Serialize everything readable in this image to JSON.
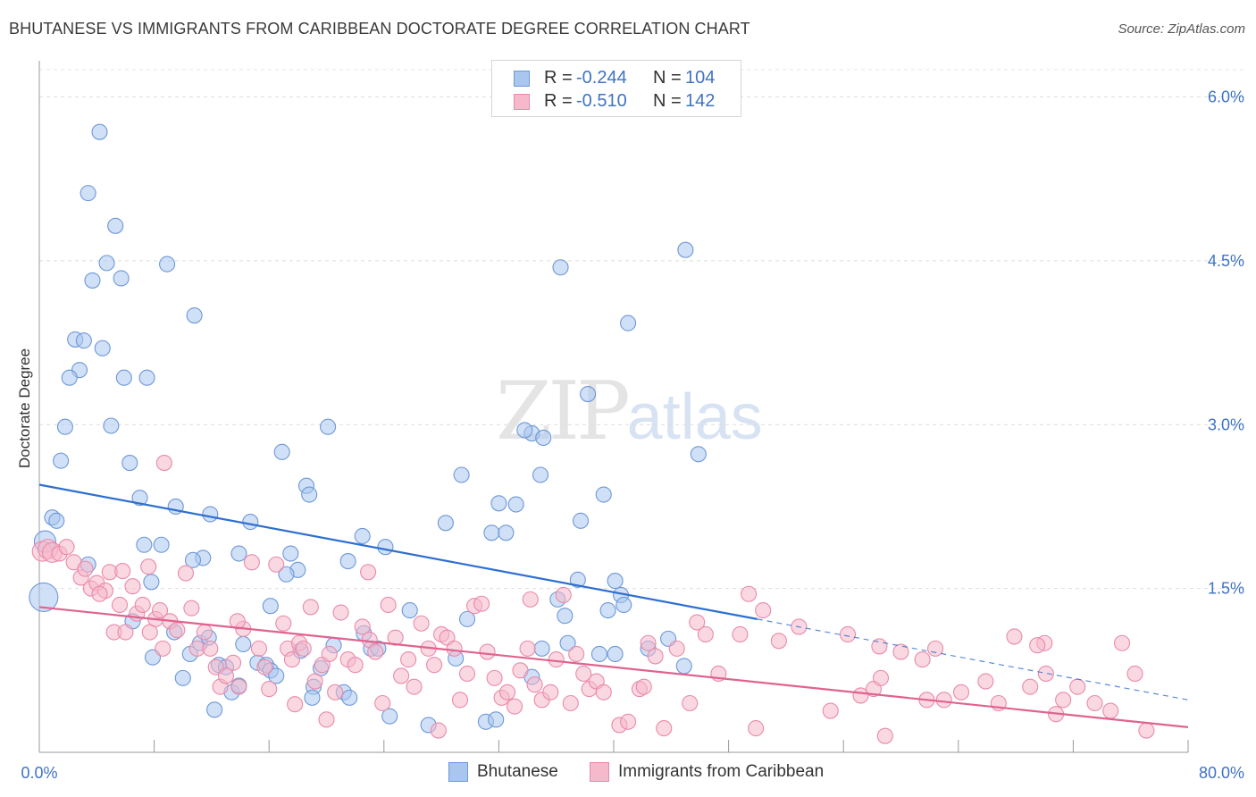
{
  "header": {
    "title": "BHUTANESE VS IMMIGRANTS FROM CARIBBEAN DOCTORATE DEGREE CORRELATION CHART",
    "source": "Source: ZipAtlas.com"
  },
  "watermark": {
    "zip": "ZIP",
    "atlas": "atlas"
  },
  "legend": {
    "r_label": "R =",
    "n_label": "N =",
    "rows": [
      {
        "r": "-0.244",
        "n": "104"
      },
      {
        "r": "-0.510",
        "n": "142"
      }
    ]
  },
  "chart_data": {
    "type": "scatter",
    "title": "BHUTANESE VS IMMIGRANTS FROM CARIBBEAN DOCTORATE DEGREE CORRELATION CHART",
    "ylabel": "Doctorate Degree",
    "xlim": [
      0,
      80
    ],
    "ylim": [
      0,
      6.25
    ],
    "x_ticks": [
      "0.0%",
      "80.0%"
    ],
    "y_ticks": [
      {
        "value": 1.5,
        "label": "1.5%"
      },
      {
        "value": 3.0,
        "label": "3.0%"
      },
      {
        "value": 4.5,
        "label": "4.5%"
      },
      {
        "value": 6.0,
        "label": "6.0%"
      }
    ],
    "grid": true,
    "legend_position": "top-center",
    "colors": {
      "blue_fill": "#a9c6ef",
      "blue_stroke": "#6d98d8",
      "blue_line": "#2e6fd0",
      "pink_fill": "#f6b8cb",
      "pink_stroke": "#e98aa9",
      "pink_line": "#e0628f",
      "axis_text": "#3f73c4"
    },
    "series": [
      {
        "name": "Bhutanese",
        "trend": {
          "x0": 0,
          "y0": 2.45,
          "x1": 50,
          "y1": 1.22,
          "dash_to_x": 80,
          "dash_to_y": 0.48
        },
        "points": [
          [
            0.3,
            1.42
          ],
          [
            0.4,
            1.93
          ],
          [
            0.9,
            2.15
          ],
          [
            1.2,
            2.12
          ],
          [
            4.2,
            5.68
          ],
          [
            3.4,
            5.12
          ],
          [
            5.3,
            4.82
          ],
          [
            4.7,
            4.48
          ],
          [
            3.7,
            4.32
          ],
          [
            5.7,
            4.34
          ],
          [
            8.9,
            4.47
          ],
          [
            10.8,
            4.0
          ],
          [
            2.5,
            3.78
          ],
          [
            3.1,
            3.77
          ],
          [
            4.4,
            3.7
          ],
          [
            2.8,
            3.5
          ],
          [
            2.1,
            3.43
          ],
          [
            5.9,
            3.43
          ],
          [
            7.5,
            3.43
          ],
          [
            1.8,
            2.98
          ],
          [
            5.0,
            2.99
          ],
          [
            1.5,
            2.67
          ],
          [
            6.3,
            2.65
          ],
          [
            7.0,
            2.33
          ],
          [
            9.5,
            2.25
          ],
          [
            11.9,
            2.18
          ],
          [
            14.7,
            2.11
          ],
          [
            16.9,
            2.75
          ],
          [
            18.6,
            2.44
          ],
          [
            18.8,
            2.36
          ],
          [
            20.1,
            2.98
          ],
          [
            22.5,
            1.98
          ],
          [
            24.1,
            1.88
          ],
          [
            21.5,
            1.75
          ],
          [
            17.5,
            1.82
          ],
          [
            18.0,
            1.67
          ],
          [
            17.2,
            1.63
          ],
          [
            13.9,
            1.82
          ],
          [
            11.4,
            1.78
          ],
          [
            10.7,
            1.76
          ],
          [
            8.5,
            1.9
          ],
          [
            7.3,
            1.9
          ],
          [
            7.8,
            1.56
          ],
          [
            3.4,
            1.72
          ],
          [
            16.1,
            1.34
          ],
          [
            25.8,
            1.3
          ],
          [
            28.3,
            2.1
          ],
          [
            29.8,
            1.22
          ],
          [
            29.4,
            2.54
          ],
          [
            31.5,
            2.01
          ],
          [
            32.5,
            2.01
          ],
          [
            32.0,
            2.28
          ],
          [
            33.2,
            2.27
          ],
          [
            34.3,
            2.92
          ],
          [
            33.8,
            2.95
          ],
          [
            35.1,
            2.88
          ],
          [
            36.1,
            1.4
          ],
          [
            36.6,
            1.25
          ],
          [
            37.5,
            1.58
          ],
          [
            35.0,
            0.95
          ],
          [
            34.3,
            0.69
          ],
          [
            34.9,
            2.54
          ],
          [
            36.3,
            4.44
          ],
          [
            37.7,
            2.12
          ],
          [
            36.8,
            1.0
          ],
          [
            38.2,
            3.28
          ],
          [
            39.3,
            2.36
          ],
          [
            39.6,
            1.3
          ],
          [
            40.1,
            1.57
          ],
          [
            40.5,
            1.44
          ],
          [
            40.7,
            1.35
          ],
          [
            39.0,
            0.9
          ],
          [
            40.1,
            0.9
          ],
          [
            41.0,
            3.93
          ],
          [
            42.4,
            0.95
          ],
          [
            43.8,
            1.04
          ],
          [
            45.0,
            4.6
          ],
          [
            45.9,
            2.73
          ],
          [
            44.9,
            0.79
          ],
          [
            7.9,
            0.87
          ],
          [
            9.4,
            1.1
          ],
          [
            10.0,
            0.68
          ],
          [
            10.5,
            0.9
          ],
          [
            11.2,
            1.0
          ],
          [
            11.8,
            1.05
          ],
          [
            12.5,
            0.8
          ],
          [
            13.0,
            0.78
          ],
          [
            13.4,
            0.55
          ],
          [
            13.9,
            0.61
          ],
          [
            14.2,
            0.99
          ],
          [
            15.2,
            0.82
          ],
          [
            15.8,
            0.8
          ],
          [
            16.1,
            0.75
          ],
          [
            16.5,
            0.7
          ],
          [
            18.2,
            0.93
          ],
          [
            19.1,
            0.6
          ],
          [
            19.6,
            0.77
          ],
          [
            20.5,
            0.98
          ],
          [
            21.2,
            0.55
          ],
          [
            21.6,
            0.5
          ],
          [
            22.6,
            1.09
          ],
          [
            23.1,
            0.95
          ],
          [
            23.6,
            0.95
          ],
          [
            24.4,
            0.33
          ],
          [
            27.1,
            0.25
          ],
          [
            29.0,
            0.86
          ],
          [
            31.1,
            0.28
          ],
          [
            31.8,
            0.3
          ],
          [
            12.2,
            0.39
          ],
          [
            19.0,
            0.5
          ],
          [
            6.5,
            1.2
          ]
        ]
      },
      {
        "name": "Immigrants from Caribbean",
        "trend": {
          "x0": 0,
          "y0": 1.33,
          "x1": 80,
          "y1": 0.23
        },
        "points": [
          [
            0.2,
            1.84
          ],
          [
            0.6,
            1.86
          ],
          [
            0.9,
            1.83
          ],
          [
            1.4,
            1.82
          ],
          [
            1.9,
            1.88
          ],
          [
            2.4,
            1.74
          ],
          [
            2.9,
            1.6
          ],
          [
            3.2,
            1.68
          ],
          [
            3.6,
            1.5
          ],
          [
            4.0,
            1.55
          ],
          [
            4.6,
            1.48
          ],
          [
            4.9,
            1.65
          ],
          [
            5.2,
            1.1
          ],
          [
            5.6,
            1.35
          ],
          [
            6.0,
            1.1
          ],
          [
            5.8,
            1.66
          ],
          [
            6.5,
            1.52
          ],
          [
            6.8,
            1.27
          ],
          [
            7.2,
            1.35
          ],
          [
            7.7,
            1.1
          ],
          [
            8.1,
            1.22
          ],
          [
            8.6,
            0.95
          ],
          [
            8.4,
            1.3
          ],
          [
            9.1,
            1.2
          ],
          [
            9.6,
            1.12
          ],
          [
            10.2,
            1.64
          ],
          [
            10.6,
            1.32
          ],
          [
            11.0,
            0.95
          ],
          [
            11.5,
            1.1
          ],
          [
            11.9,
            0.95
          ],
          [
            12.3,
            0.78
          ],
          [
            12.6,
            0.6
          ],
          [
            13.0,
            0.7
          ],
          [
            13.5,
            0.82
          ],
          [
            13.9,
            0.6
          ],
          [
            14.2,
            1.13
          ],
          [
            14.8,
            1.74
          ],
          [
            15.3,
            0.95
          ],
          [
            15.7,
            0.78
          ],
          [
            16.0,
            0.58
          ],
          [
            16.5,
            1.72
          ],
          [
            17.0,
            1.18
          ],
          [
            17.3,
            0.95
          ],
          [
            17.6,
            0.85
          ],
          [
            18.1,
            1.0
          ],
          [
            18.4,
            0.95
          ],
          [
            18.9,
            1.33
          ],
          [
            19.2,
            0.65
          ],
          [
            19.7,
            0.8
          ],
          [
            20.2,
            0.9
          ],
          [
            20.6,
            0.55
          ],
          [
            21.0,
            1.28
          ],
          [
            21.5,
            0.85
          ],
          [
            22.0,
            0.8
          ],
          [
            22.5,
            1.15
          ],
          [
            23.0,
            1.03
          ],
          [
            23.4,
            0.92
          ],
          [
            23.9,
            0.45
          ],
          [
            24.3,
            1.35
          ],
          [
            24.8,
            1.05
          ],
          [
            25.2,
            0.7
          ],
          [
            25.7,
            0.85
          ],
          [
            26.1,
            0.6
          ],
          [
            26.6,
            1.18
          ],
          [
            27.1,
            0.95
          ],
          [
            27.5,
            0.8
          ],
          [
            28.0,
            1.08
          ],
          [
            28.4,
            1.05
          ],
          [
            28.9,
            0.95
          ],
          [
            29.3,
            0.48
          ],
          [
            29.8,
            0.72
          ],
          [
            30.3,
            1.34
          ],
          [
            30.8,
            1.36
          ],
          [
            31.2,
            0.92
          ],
          [
            31.7,
            0.68
          ],
          [
            32.2,
            0.5
          ],
          [
            32.6,
            0.55
          ],
          [
            33.1,
            0.42
          ],
          [
            33.5,
            0.75
          ],
          [
            34.0,
            0.95
          ],
          [
            34.5,
            0.62
          ],
          [
            35.0,
            0.48
          ],
          [
            35.6,
            0.55
          ],
          [
            36.0,
            0.85
          ],
          [
            36.5,
            1.44
          ],
          [
            37.0,
            0.45
          ],
          [
            37.4,
            0.9
          ],
          [
            37.9,
            0.72
          ],
          [
            38.3,
            0.58
          ],
          [
            38.8,
            0.65
          ],
          [
            39.3,
            0.55
          ],
          [
            40.4,
            0.25
          ],
          [
            41.0,
            0.28
          ],
          [
            41.8,
            0.58
          ],
          [
            42.4,
            1.0
          ],
          [
            42.9,
            0.88
          ],
          [
            43.5,
            0.22
          ],
          [
            44.4,
            0.95
          ],
          [
            45.3,
            0.45
          ],
          [
            46.4,
            1.08
          ],
          [
            47.3,
            0.72
          ],
          [
            48.8,
            1.08
          ],
          [
            49.4,
            1.45
          ],
          [
            50.4,
            1.3
          ],
          [
            51.5,
            1.02
          ],
          [
            52.9,
            1.15
          ],
          [
            55.1,
            0.38
          ],
          [
            56.3,
            1.08
          ],
          [
            57.2,
            0.52
          ],
          [
            58.5,
            0.97
          ],
          [
            58.1,
            0.58
          ],
          [
            58.9,
            0.15
          ],
          [
            60.0,
            0.92
          ],
          [
            61.5,
            0.85
          ],
          [
            62.4,
            0.95
          ],
          [
            63.0,
            0.48
          ],
          [
            64.2,
            0.55
          ],
          [
            65.9,
            0.65
          ],
          [
            66.8,
            0.45
          ],
          [
            67.9,
            1.06
          ],
          [
            69.0,
            0.6
          ],
          [
            70.1,
            0.72
          ],
          [
            70.8,
            0.35
          ],
          [
            72.3,
            0.6
          ],
          [
            73.5,
            0.45
          ],
          [
            74.6,
            0.38
          ],
          [
            75.4,
            1.0
          ],
          [
            76.3,
            0.72
          ],
          [
            77.1,
            0.2
          ],
          [
            70.0,
            1.0
          ],
          [
            71.3,
            0.48
          ],
          [
            69.5,
            0.98
          ],
          [
            42.1,
            0.6
          ],
          [
            61.8,
            0.48
          ],
          [
            58.6,
            0.68
          ],
          [
            20.0,
            0.3
          ],
          [
            27.8,
            0.2
          ],
          [
            49.9,
            0.22
          ],
          [
            17.8,
            0.44
          ],
          [
            4.2,
            1.45
          ],
          [
            8.7,
            2.65
          ],
          [
            7.6,
            1.7
          ],
          [
            13.8,
            1.2
          ],
          [
            22.9,
            1.65
          ],
          [
            34.2,
            1.4
          ],
          [
            45.8,
            1.19
          ]
        ]
      }
    ]
  }
}
